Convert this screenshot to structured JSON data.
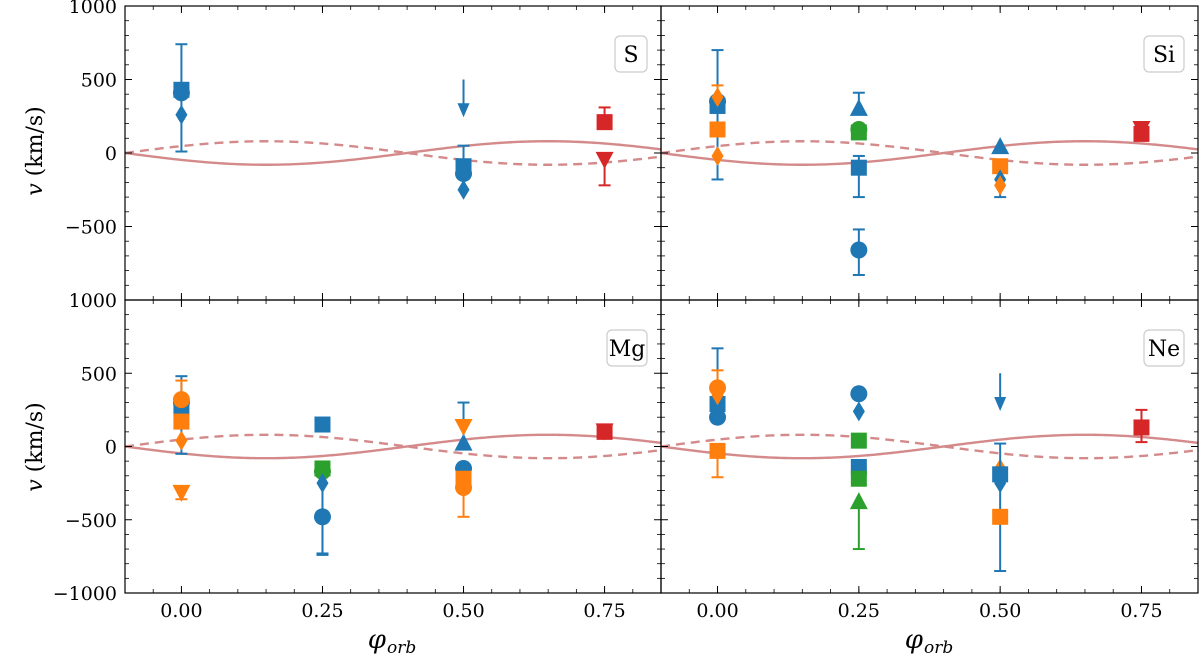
{
  "figure": {
    "xlabel_main": "φ",
    "xlabel_sub": "orb",
    "ylabel_var": "v",
    "ylabel_unit": "(km/s)",
    "xlim": [
      -0.1,
      0.85
    ],
    "ylim": [
      -1000,
      1000
    ],
    "xticks": [
      0.0,
      0.25,
      0.5,
      0.75
    ],
    "xtick_labels": [
      "0.00",
      "0.25",
      "0.50",
      "0.75"
    ],
    "yticks": [
      -1000,
      -500,
      0,
      500,
      1000
    ],
    "ytick_labels_bottom": [
      "−1000",
      "−500",
      "0",
      "500",
      "1000"
    ],
    "ytick_labels_top": [
      "",
      "−500",
      "0",
      "500",
      "1000"
    ],
    "colors": {
      "blue": "#1f77b4",
      "orange": "#ff7f0e",
      "green": "#2ca02c",
      "red": "#d62728",
      "curve": "#d48a8a"
    },
    "curves": {
      "amplitude": 80,
      "period": 1.0,
      "solid_zero_crossing": 0.4,
      "styles": [
        "solid",
        "dashed"
      ]
    }
  },
  "chart_data": [
    {
      "type": "scatter",
      "title": "S",
      "xlabel": "",
      "ylabel": "v (km/s)",
      "xlim": [
        -0.1,
        0.85
      ],
      "ylim": [
        -1000,
        1000
      ],
      "points": [
        {
          "x": 0.0,
          "y": 430,
          "marker": "square",
          "color": "blue",
          "err": [
            0,
            0
          ]
        },
        {
          "x": 0.0,
          "y": 410,
          "marker": "circle",
          "color": "blue",
          "err": [
            0,
            0
          ]
        },
        {
          "x": 0.0,
          "y": 260,
          "marker": "diamond",
          "color": "blue",
          "err": [
            250,
            480
          ]
        },
        {
          "x": 0.5,
          "y": -90,
          "marker": "square",
          "color": "blue",
          "err": [
            0,
            140
          ]
        },
        {
          "x": 0.5,
          "y": -140,
          "marker": "circle",
          "color": "blue",
          "err": [
            0,
            0
          ]
        },
        {
          "x": 0.5,
          "y": -250,
          "marker": "diamond",
          "color": "blue",
          "err": [
            0,
            0
          ]
        },
        {
          "x": 0.5,
          "y": 500,
          "marker": "arrow",
          "color": "blue",
          "err": [
            0,
            0
          ]
        },
        {
          "x": 0.75,
          "y": 210,
          "marker": "square",
          "color": "red",
          "err": [
            0,
            100
          ]
        },
        {
          "x": 0.75,
          "y": -40,
          "marker": "triangle_down",
          "color": "red",
          "err": [
            180,
            0
          ]
        }
      ]
    },
    {
      "type": "scatter",
      "title": "Si",
      "xlabel": "",
      "ylabel": "",
      "xlim": [
        -0.1,
        0.85
      ],
      "ylim": [
        -1000,
        1000
      ],
      "points": [
        {
          "x": 0.0,
          "y": 320,
          "marker": "square",
          "color": "blue",
          "err": [
            500,
            380
          ]
        },
        {
          "x": 0.0,
          "y": 350,
          "marker": "circle",
          "color": "blue",
          "err": [
            0,
            0
          ]
        },
        {
          "x": 0.0,
          "y": 380,
          "marker": "diamond",
          "color": "orange",
          "err": [
            0,
            80
          ]
        },
        {
          "x": 0.0,
          "y": 160,
          "marker": "square",
          "color": "orange",
          "err": [
            0,
            0
          ]
        },
        {
          "x": 0.0,
          "y": -20,
          "marker": "diamond",
          "color": "orange",
          "err": [
            0,
            0
          ]
        },
        {
          "x": 0.25,
          "y": 300,
          "marker": "triangle_up",
          "color": "blue",
          "err": [
            0,
            110
          ]
        },
        {
          "x": 0.25,
          "y": 160,
          "marker": "circle",
          "color": "green",
          "err": [
            0,
            0
          ]
        },
        {
          "x": 0.25,
          "y": 140,
          "marker": "square",
          "color": "green",
          "err": [
            0,
            0
          ]
        },
        {
          "x": 0.25,
          "y": -100,
          "marker": "square",
          "color": "blue",
          "err": [
            200,
            80
          ]
        },
        {
          "x": 0.25,
          "y": -660,
          "marker": "circle",
          "color": "blue",
          "err": [
            170,
            140
          ]
        },
        {
          "x": 0.5,
          "y": 40,
          "marker": "triangle_up",
          "color": "blue",
          "err": [
            0,
            0
          ]
        },
        {
          "x": 0.5,
          "y": -90,
          "marker": "square",
          "color": "orange",
          "err": [
            0,
            0
          ]
        },
        {
          "x": 0.5,
          "y": -180,
          "marker": "diamond",
          "color": "blue",
          "err": [
            120,
            0
          ]
        },
        {
          "x": 0.5,
          "y": -220,
          "marker": "diamond",
          "color": "orange",
          "err": [
            0,
            0
          ]
        },
        {
          "x": 0.75,
          "y": 170,
          "marker": "triangle_down",
          "color": "red",
          "err": [
            0,
            0
          ]
        },
        {
          "x": 0.75,
          "y": 130,
          "marker": "square",
          "color": "red",
          "err": [
            0,
            0
          ]
        }
      ]
    },
    {
      "type": "scatter",
      "title": "Mg",
      "xlabel": "φ_orb",
      "ylabel": "v (km/s)",
      "xlim": [
        -0.1,
        0.85
      ],
      "ylim": [
        -1000,
        1000
      ],
      "points": [
        {
          "x": 0.0,
          "y": 270,
          "marker": "square",
          "color": "blue",
          "err": [
            320,
            210
          ]
        },
        {
          "x": 0.0,
          "y": 300,
          "marker": "circle",
          "color": "blue",
          "err": [
            0,
            0
          ]
        },
        {
          "x": 0.0,
          "y": 320,
          "marker": "circle",
          "color": "orange",
          "err": [
            0,
            130
          ]
        },
        {
          "x": 0.0,
          "y": 170,
          "marker": "square",
          "color": "orange",
          "err": [
            0,
            0
          ]
        },
        {
          "x": 0.0,
          "y": 40,
          "marker": "diamond",
          "color": "orange",
          "err": [
            0,
            0
          ]
        },
        {
          "x": 0.0,
          "y": -310,
          "marker": "triangle_down",
          "color": "orange",
          "err": [
            50,
            0
          ]
        },
        {
          "x": 0.25,
          "y": 150,
          "marker": "square",
          "color": "blue",
          "err": [
            0,
            0
          ]
        },
        {
          "x": 0.25,
          "y": -150,
          "marker": "square",
          "color": "green",
          "err": [
            0,
            0
          ]
        },
        {
          "x": 0.25,
          "y": -170,
          "marker": "circle",
          "color": "green",
          "err": [
            0,
            0
          ]
        },
        {
          "x": 0.25,
          "y": -250,
          "marker": "diamond",
          "color": "blue",
          "err": [
            480,
            0
          ]
        },
        {
          "x": 0.25,
          "y": -480,
          "marker": "circle",
          "color": "blue",
          "err": [
            260,
            0
          ]
        },
        {
          "x": 0.5,
          "y": 20,
          "marker": "triangle_up",
          "color": "blue",
          "err": [
            0,
            280
          ]
        },
        {
          "x": 0.5,
          "y": 140,
          "marker": "triangle_down",
          "color": "orange",
          "err": [
            0,
            0
          ]
        },
        {
          "x": 0.5,
          "y": -150,
          "marker": "circle",
          "color": "blue",
          "err": [
            0,
            0
          ]
        },
        {
          "x": 0.5,
          "y": -220,
          "marker": "square",
          "color": "orange",
          "err": [
            0,
            0
          ]
        },
        {
          "x": 0.5,
          "y": -280,
          "marker": "circle",
          "color": "orange",
          "err": [
            200,
            0
          ]
        },
        {
          "x": 0.75,
          "y": 110,
          "marker": "triangle_down",
          "color": "red",
          "err": [
            0,
            0
          ]
        },
        {
          "x": 0.75,
          "y": 100,
          "marker": "square",
          "color": "red",
          "err": [
            0,
            0
          ]
        }
      ]
    },
    {
      "type": "scatter",
      "title": "Ne",
      "xlabel": "φ_orb",
      "ylabel": "",
      "xlim": [
        -0.1,
        0.85
      ],
      "ylim": [
        -1000,
        1000
      ],
      "points": [
        {
          "x": 0.0,
          "y": 290,
          "marker": "square",
          "color": "blue",
          "err": [
            0,
            380
          ]
        },
        {
          "x": 0.0,
          "y": 200,
          "marker": "circle",
          "color": "blue",
          "err": [
            0,
            0
          ]
        },
        {
          "x": 0.0,
          "y": 400,
          "marker": "circle",
          "color": "orange",
          "err": [
            0,
            120
          ]
        },
        {
          "x": 0.0,
          "y": 350,
          "marker": "diamond",
          "color": "orange",
          "err": [
            0,
            0
          ]
        },
        {
          "x": 0.0,
          "y": -30,
          "marker": "square",
          "color": "orange",
          "err": [
            180,
            0
          ]
        },
        {
          "x": 0.25,
          "y": 360,
          "marker": "circle",
          "color": "blue",
          "err": [
            0,
            0
          ]
        },
        {
          "x": 0.25,
          "y": 240,
          "marker": "diamond",
          "color": "blue",
          "err": [
            0,
            0
          ]
        },
        {
          "x": 0.25,
          "y": 40,
          "marker": "square",
          "color": "green",
          "err": [
            0,
            0
          ]
        },
        {
          "x": 0.25,
          "y": -140,
          "marker": "square",
          "color": "blue",
          "err": [
            0,
            0
          ]
        },
        {
          "x": 0.25,
          "y": -220,
          "marker": "square",
          "color": "green",
          "err": [
            0,
            0
          ]
        },
        {
          "x": 0.25,
          "y": -380,
          "marker": "triangle_up",
          "color": "green",
          "err": [
            320,
            0
          ]
        },
        {
          "x": 0.5,
          "y": 500,
          "marker": "arrow",
          "color": "blue",
          "err": [
            0,
            0
          ]
        },
        {
          "x": 0.5,
          "y": -150,
          "marker": "diamond",
          "color": "orange",
          "err": [
            0,
            0
          ]
        },
        {
          "x": 0.5,
          "y": -190,
          "marker": "square",
          "color": "blue",
          "err": [
            660,
            210
          ]
        },
        {
          "x": 0.5,
          "y": -250,
          "marker": "diamond",
          "color": "blue",
          "err": [
            0,
            0
          ]
        },
        {
          "x": 0.5,
          "y": -480,
          "marker": "square",
          "color": "orange",
          "err": [
            0,
            0
          ]
        },
        {
          "x": 0.75,
          "y": 130,
          "marker": "square",
          "color": "red",
          "err": [
            100,
            120
          ]
        }
      ]
    }
  ]
}
